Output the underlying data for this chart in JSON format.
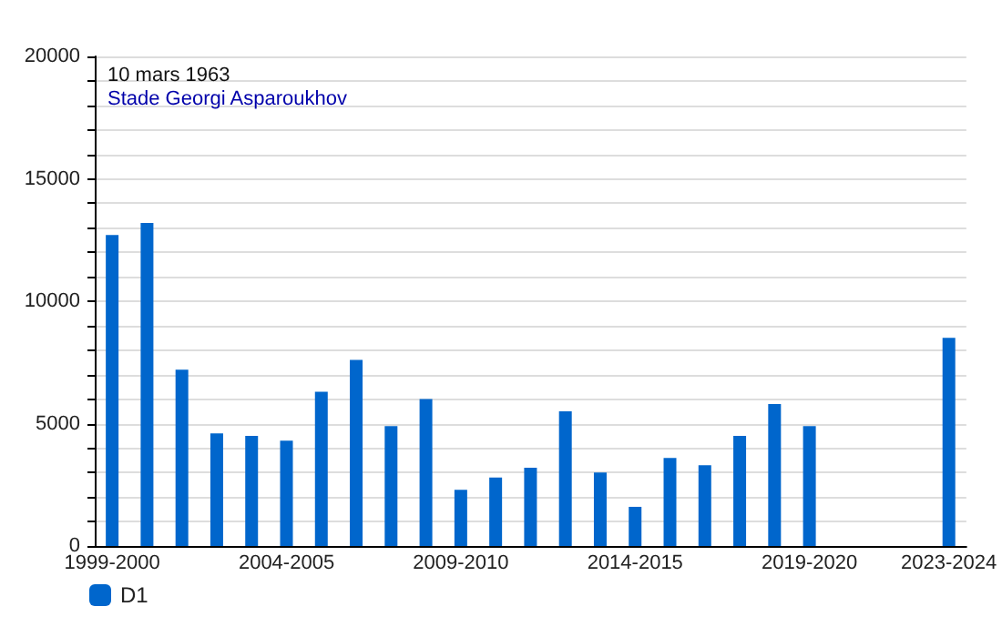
{
  "chart_data": {
    "type": "bar",
    "title": "10 mars 1963",
    "subtitle": "Stade Georgi Asparoukhov",
    "categories": [
      "1999-2000",
      null,
      null,
      null,
      null,
      "2004-2005",
      null,
      null,
      null,
      null,
      "2009-2010",
      null,
      null,
      null,
      null,
      "2014-2015",
      null,
      null,
      null,
      null,
      "2019-2020",
      null,
      null,
      null,
      "2023-2024"
    ],
    "series": [
      {
        "name": "D1",
        "color": "#0066cc",
        "values": [
          12700,
          13200,
          7200,
          4600,
          4500,
          4300,
          6300,
          7600,
          4900,
          6000,
          2300,
          2800,
          3200,
          5500,
          3000,
          1600,
          3600,
          3300,
          4500,
          5800,
          4900,
          null,
          null,
          null,
          8500
        ]
      }
    ],
    "ylim": [
      0,
      20000
    ],
    "yticks": [
      0,
      {
        "value": 1000,
        "label": null
      },
      {
        "value": 2000,
        "label": null
      },
      {
        "value": 3000,
        "label": null
      },
      {
        "value": 4000,
        "label": null
      },
      5000,
      {
        "value": 6000,
        "label": null
      },
      {
        "value": 7000,
        "label": null
      },
      {
        "value": 8000,
        "label": null
      },
      {
        "value": 9000,
        "label": null
      },
      10000,
      {
        "value": 11000,
        "label": null
      },
      {
        "value": 12000,
        "label": null
      },
      {
        "value": 13000,
        "label": null
      },
      {
        "value": 14000,
        "label": null
      },
      15000,
      {
        "value": 16000,
        "label": null
      },
      {
        "value": 17000,
        "label": null
      },
      {
        "value": 18000,
        "label": null
      },
      {
        "value": 19000,
        "label": null
      },
      20000
    ],
    "grid": "y",
    "legend": "bottom left"
  }
}
